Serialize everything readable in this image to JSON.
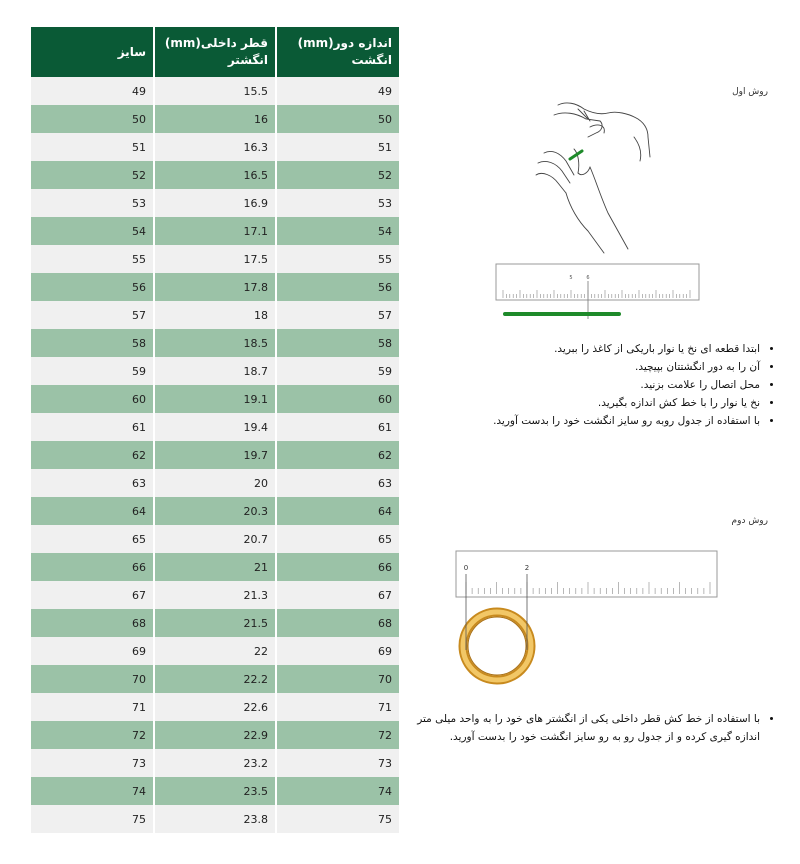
{
  "table": {
    "headers": [
      "اندازه دور(mm) انگشت",
      "قطر داخلی(mm) انگشتر",
      "سایز"
    ],
    "rows": [
      [
        "49",
        "15.5",
        "49"
      ],
      [
        "50",
        "16",
        "50"
      ],
      [
        "51",
        "16.3",
        "51"
      ],
      [
        "52",
        "16.5",
        "52"
      ],
      [
        "53",
        "16.9",
        "53"
      ],
      [
        "54",
        "17.1",
        "54"
      ],
      [
        "55",
        "17.5",
        "55"
      ],
      [
        "56",
        "17.8",
        "56"
      ],
      [
        "57",
        "18",
        "57"
      ],
      [
        "58",
        "18.5",
        "58"
      ],
      [
        "59",
        "18.7",
        "59"
      ],
      [
        "60",
        "19.1",
        "60"
      ],
      [
        "61",
        "19.4",
        "61"
      ],
      [
        "62",
        "19.7",
        "62"
      ],
      [
        "63",
        "20",
        "63"
      ],
      [
        "64",
        "20.3",
        "64"
      ],
      [
        "65",
        "20.7",
        "65"
      ],
      [
        "66",
        "21",
        "66"
      ],
      [
        "67",
        "21.3",
        "67"
      ],
      [
        "68",
        "21.5",
        "68"
      ],
      [
        "69",
        "22",
        "69"
      ],
      [
        "70",
        "22.2",
        "70"
      ],
      [
        "71",
        "22.6",
        "71"
      ],
      [
        "72",
        "22.9",
        "72"
      ],
      [
        "73",
        "23.2",
        "73"
      ],
      [
        "74",
        "23.5",
        "74"
      ],
      [
        "75",
        "23.8",
        "75"
      ]
    ]
  },
  "method1": {
    "title": "روش اول",
    "ruler_labels": [
      "5",
      "6"
    ],
    "steps": [
      "ابتدا قطعه ای نخ یا نوار باریکی از کاغذ را ببرید.",
      "آن را به دور انگشتتان بپیچید.",
      "محل اتصال را علامت بزنید.",
      "نخ یا نوار را با خط کش اندازه بگیرید.",
      "با استفاده از جدول روبه رو سایز انگشت خود را بدست آورید."
    ]
  },
  "method2": {
    "title": "روش دوم",
    "ruler_labels": [
      "0",
      "2"
    ],
    "steps": [
      "با استفاده از خط کش قطر داخلی یکی از انگشتر های خود را به واحد میلی متر اندازه گیری کرده و از جدول رو به رو سایز انگشت خود را بدست آورید."
    ]
  },
  "colors": {
    "header": "#0a5a36",
    "stripe": "#9bc2a7",
    "row": "#f0f0f0",
    "string": "#1e8a2a",
    "ring": "#e0a93a"
  }
}
